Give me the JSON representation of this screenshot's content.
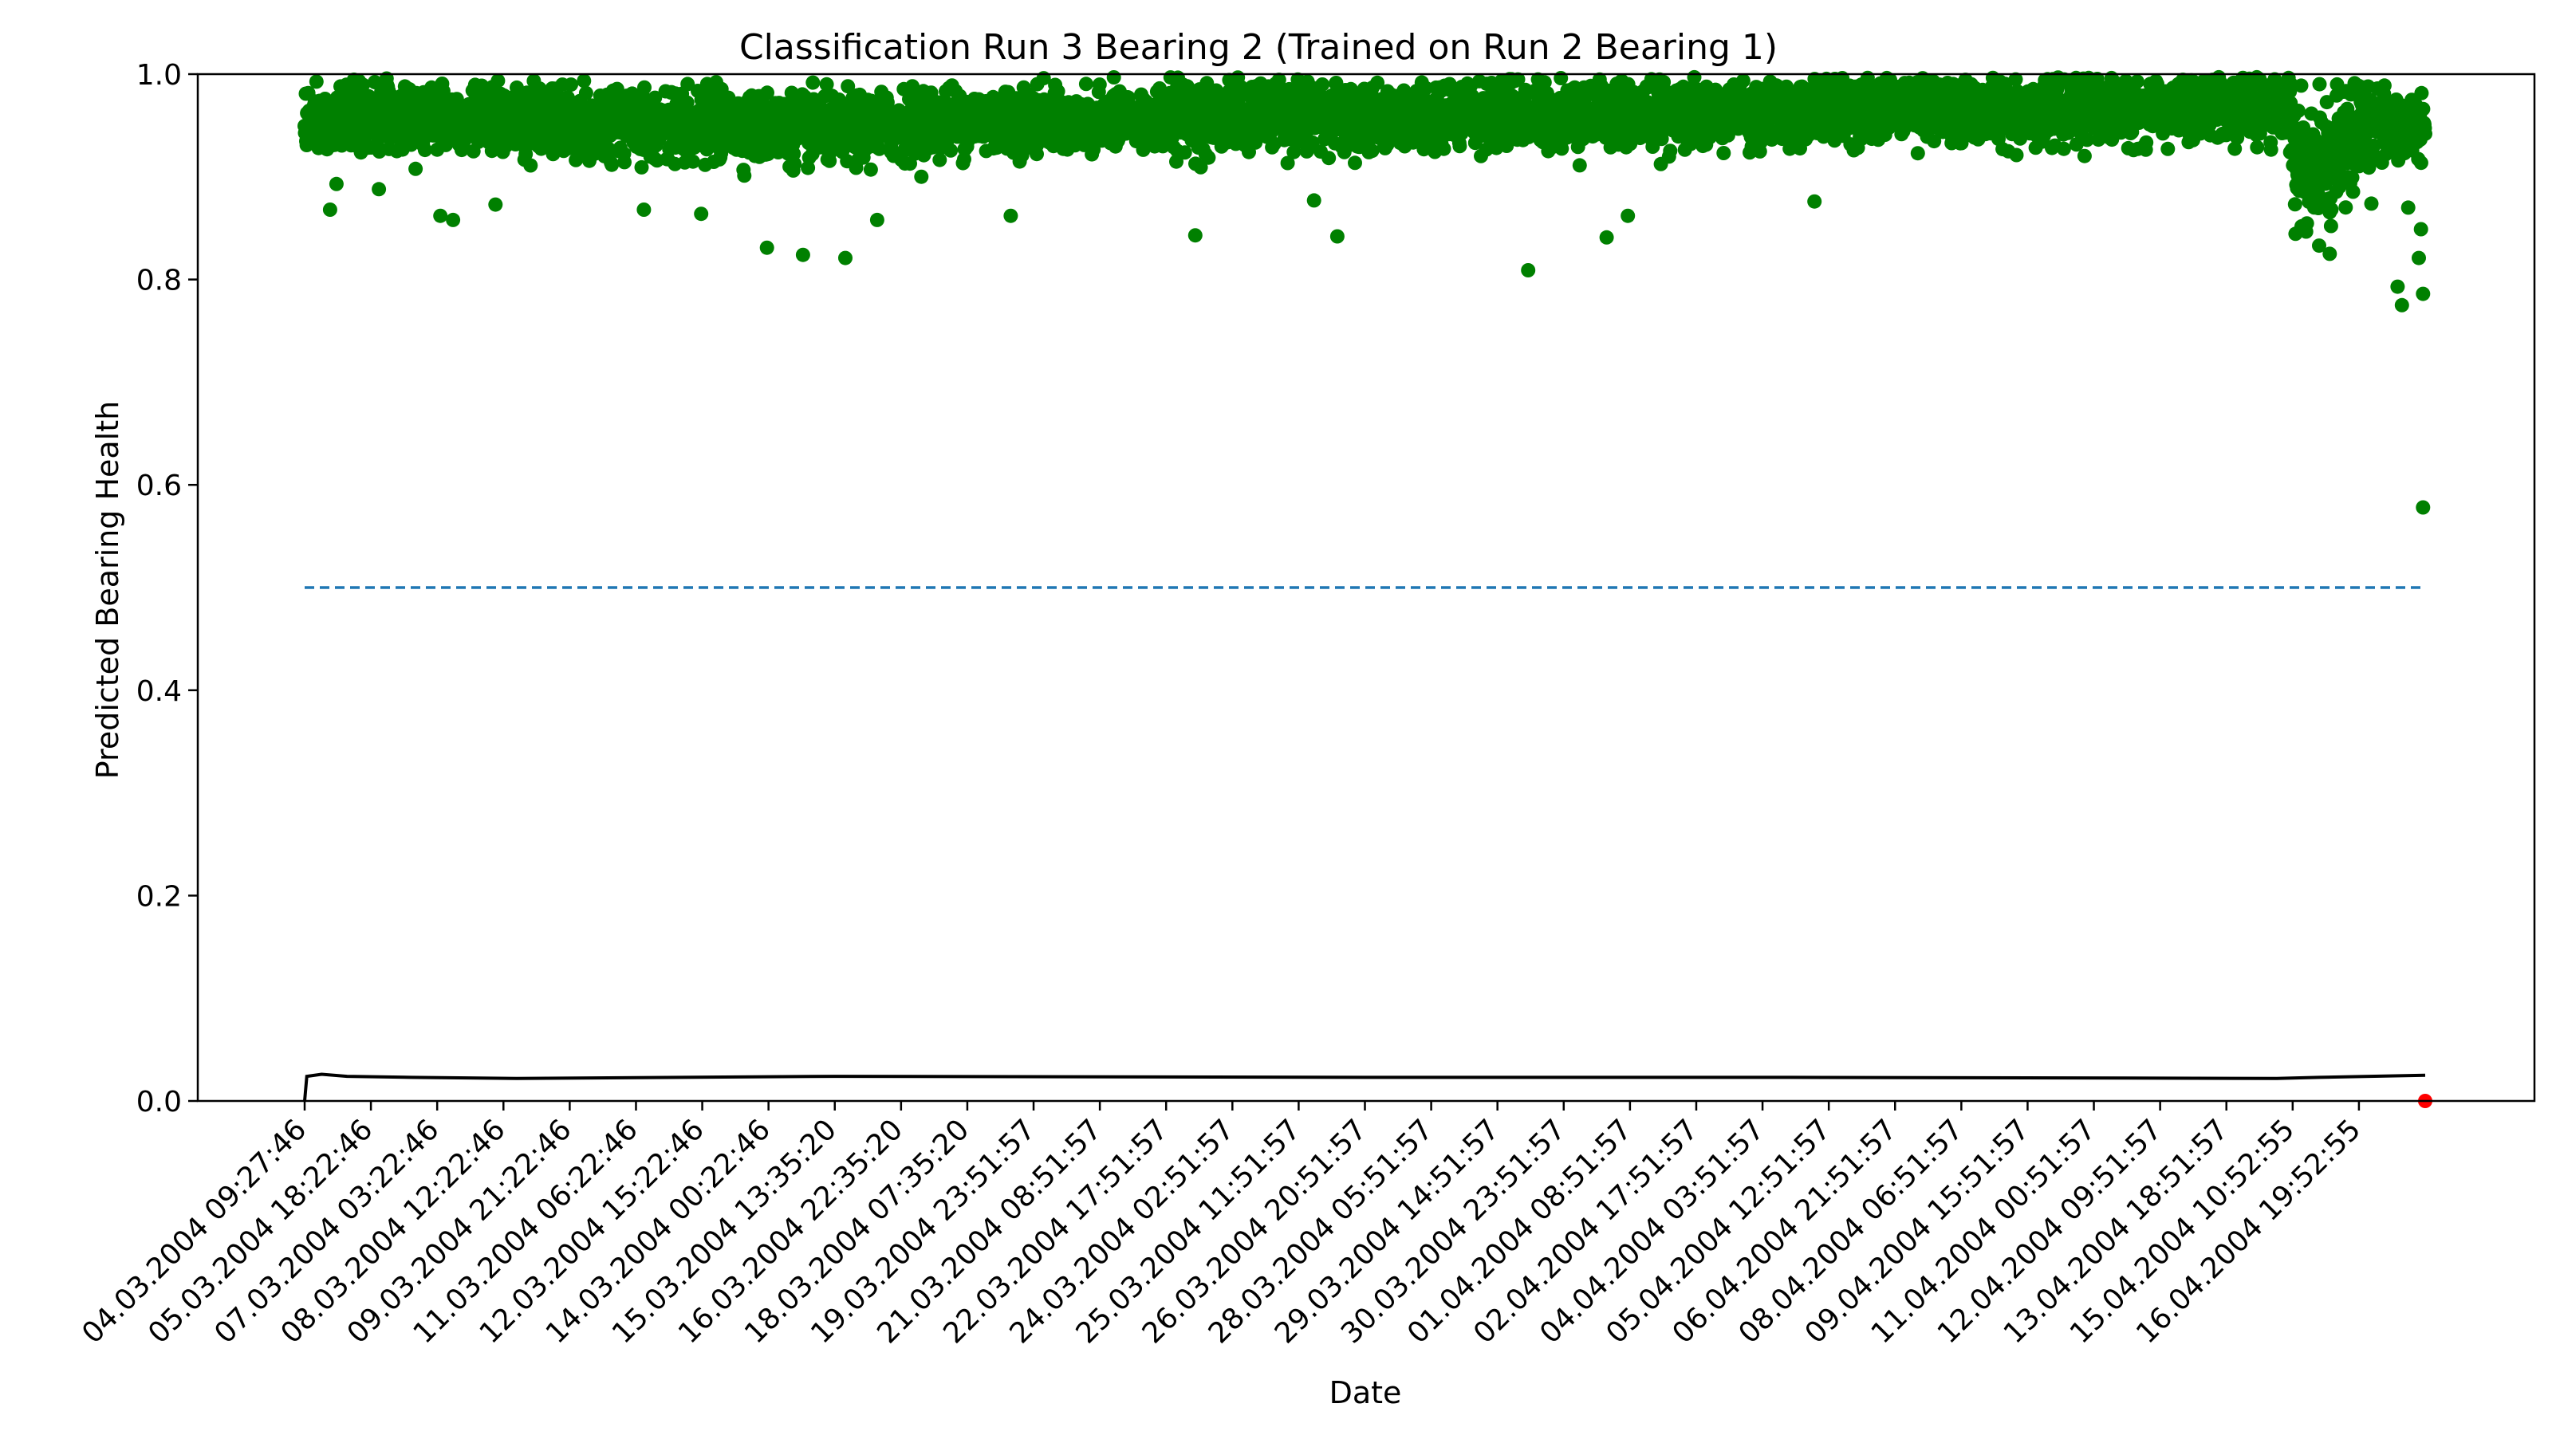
{
  "chart_data": {
    "type": "scatter",
    "title": "Classification Run 3 Bearing 2 (Trained on Run 2 Bearing 1)",
    "xlabel": "Date",
    "ylabel": "Predicted Bearing Health",
    "ylim": [
      0.0,
      1.0
    ],
    "yticks": [
      "0.0",
      "0.2",
      "0.4",
      "0.6",
      "0.8",
      "1.0"
    ],
    "xticks": [
      "04.03.2004 09:27:46",
      "05.03.2004 18:22:46",
      "07.03.2004 03:22:46",
      "08.03.2004 12:22:46",
      "09.03.2004 21:22:46",
      "11.03.2004 06:22:46",
      "12.03.2004 15:22:46",
      "14.03.2004 00:22:46",
      "15.03.2004 13:35:20",
      "16.03.2004 22:35:20",
      "18.03.2004 07:35:20",
      "19.03.2004 23:51:57",
      "21.03.2004 08:51:57",
      "22.03.2004 17:51:57",
      "24.03.2004 02:51:57",
      "25.03.2004 11:51:57",
      "26.03.2004 20:51:57",
      "28.03.2004 05:51:57",
      "29.03.2004 14:51:57",
      "30.03.2004 23:51:57",
      "01.04.2004 08:51:57",
      "02.04.2004 17:51:57",
      "04.04.2004 03:51:57",
      "05.04.2004 12:51:57",
      "06.04.2004 21:51:57",
      "08.04.2004 06:51:57",
      "09.04.2004 15:51:57",
      "11.04.2004 00:51:57",
      "12.04.2004 09:51:57",
      "13.04.2004 18:51:57",
      "15.04.2004 10:52:55",
      "16.04.2004 19:52:55"
    ],
    "grid": false,
    "series": [
      {
        "kind": "scatter",
        "color": "#008000",
        "band_profile": [
          [
            0.0,
            0.955
          ],
          [
            0.05,
            0.96
          ],
          [
            0.1,
            0.955
          ],
          [
            0.2,
            0.95
          ],
          [
            0.25,
            0.945
          ],
          [
            0.3,
            0.955
          ],
          [
            0.45,
            0.958
          ],
          [
            0.58,
            0.96
          ],
          [
            0.7,
            0.962
          ],
          [
            0.72,
            0.97
          ],
          [
            0.8,
            0.965
          ],
          [
            0.87,
            0.965
          ],
          [
            0.9355,
            0.97
          ],
          [
            0.94,
            0.905
          ],
          [
            0.955,
            0.915
          ],
          [
            0.97,
            0.95
          ],
          [
            1.0,
            0.95
          ]
        ],
        "outliers": [
          [
            0.012,
            0.868
          ],
          [
            0.015,
            0.893
          ],
          [
            0.035,
            0.888
          ],
          [
            0.064,
            0.862
          ],
          [
            0.07,
            0.858
          ],
          [
            0.09,
            0.873
          ],
          [
            0.16,
            0.868
          ],
          [
            0.187,
            0.864
          ],
          [
            0.218,
            0.831
          ],
          [
            0.235,
            0.824
          ],
          [
            0.255,
            0.821
          ],
          [
            0.27,
            0.858
          ],
          [
            0.333,
            0.862
          ],
          [
            0.42,
            0.843
          ],
          [
            0.476,
            0.877
          ],
          [
            0.487,
            0.842
          ],
          [
            0.577,
            0.809
          ],
          [
            0.614,
            0.841
          ],
          [
            0.624,
            0.862
          ],
          [
            0.712,
            0.876
          ],
          [
            0.95,
            0.833
          ],
          [
            0.955,
            0.825
          ],
          [
            0.987,
            0.793
          ],
          [
            0.989,
            0.775
          ],
          [
            0.992,
            0.87
          ],
          [
            0.997,
            0.821
          ],
          [
            0.998,
            0.849
          ],
          [
            0.999,
            0.786
          ],
          [
            0.999,
            0.578
          ]
        ]
      },
      {
        "kind": "line",
        "name": "threshold",
        "style": "dashed",
        "color": "#1f77b4",
        "y": 0.5
      },
      {
        "kind": "line",
        "color": "#000000",
        "values": [
          [
            0.0,
            0.0
          ],
          [
            0.001,
            0.024
          ],
          [
            0.008,
            0.026
          ],
          [
            0.02,
            0.024
          ],
          [
            0.05,
            0.023
          ],
          [
            0.1,
            0.022
          ],
          [
            0.25,
            0.024
          ],
          [
            0.5,
            0.023
          ],
          [
            0.7,
            0.023
          ],
          [
            0.93,
            0.022
          ],
          [
            0.95,
            0.023
          ],
          [
            1.0,
            0.025
          ]
        ]
      },
      {
        "kind": "scatter",
        "color": "#ff0000",
        "points": [
          [
            1.0,
            0.0
          ]
        ]
      }
    ]
  }
}
